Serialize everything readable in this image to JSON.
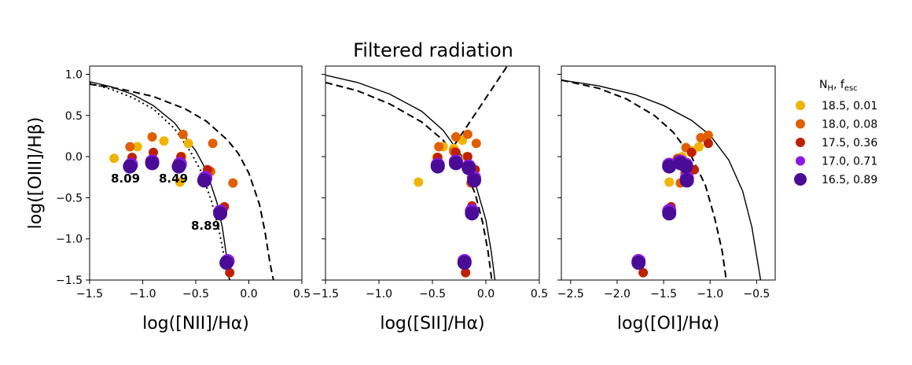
{
  "title": "Filtered radiation",
  "legend": {
    "title_main": "N",
    "title_sub1": "H",
    "title_sep": ", f",
    "title_sub2": "esc",
    "entries": [
      {
        "label": "18.5, 0.01",
        "color": "#f0b400"
      },
      {
        "label": "18.0, 0.08",
        "color": "#e06000"
      },
      {
        "label": "17.5, 0.36",
        "color": "#c02000"
      },
      {
        "label": "17.0, 0.71",
        "color": "#8c1ae6"
      },
      {
        "label": "16.5, 0.89",
        "color": "#4a0c96"
      }
    ]
  },
  "chart_data": [
    {
      "type": "scatter",
      "xlabel": "log([NII]/Hα)",
      "ylabel": "log([OIII]/Hβ)",
      "xlim": [
        -1.5,
        0.5
      ],
      "ylim": [
        -1.5,
        1.1
      ],
      "xticks": [
        -1.5,
        -1.0,
        -0.5,
        0.0,
        0.5
      ],
      "xticklabels": [
        "−1.5",
        "−1.0",
        "−0.5",
        "0.0",
        "0.5"
      ],
      "yticks": [
        -1.5,
        -1.0,
        -0.5,
        0.0,
        0.5,
        1.0
      ],
      "yticklabels": [
        "−1.5",
        "−1.0",
        "−0.5",
        "0.0",
        "0.5",
        "1.0"
      ],
      "annotations": [
        {
          "text": "8.09",
          "x": -1.25,
          "y": -0.27
        },
        {
          "text": "8.49",
          "x": -0.67,
          "y": -0.27
        },
        {
          "text": "8.89",
          "x": -0.55,
          "y": -0.85
        }
      ],
      "series": [
        {
          "name": "18.5, 0.01",
          "color": "#f0b400",
          "size": "small",
          "x": [
            -1.27,
            -1.05,
            -0.8,
            -0.63,
            -0.57,
            -0.65
          ],
          "y": [
            -0.02,
            0.12,
            0.19,
            0.0,
            0.16,
            -0.31
          ]
        },
        {
          "name": "18.0, 0.08",
          "color": "#e06000",
          "size": "small",
          "x": [
            -1.12,
            -0.91,
            -0.62,
            -0.34,
            -0.15,
            -0.36,
            -0.4
          ],
          "y": [
            0.12,
            0.24,
            0.27,
            0.16,
            -0.32,
            -0.18,
            -0.25
          ]
        },
        {
          "name": "17.5, 0.36",
          "color": "#c02000",
          "size": "small",
          "x": [
            -1.1,
            -0.9,
            -0.64,
            -0.39,
            -0.23,
            -0.18
          ],
          "y": [
            -0.01,
            0.05,
            0.0,
            -0.16,
            -0.61,
            -1.41
          ]
        },
        {
          "name": "17.0, 0.71",
          "color": "#8c1ae6",
          "size": "large",
          "x": [
            -1.11,
            -0.91,
            -0.65,
            -0.41,
            -0.27,
            -0.2
          ],
          "y": [
            -0.1,
            -0.06,
            -0.09,
            -0.26,
            -0.67,
            -1.27
          ]
        },
        {
          "name": "16.5, 0.89",
          "color": "#4a0c96",
          "size": "large",
          "x": [
            -1.12,
            -0.91,
            -0.66,
            -0.42,
            -0.27,
            -0.21
          ],
          "y": [
            -0.12,
            -0.08,
            -0.12,
            -0.29,
            -0.69,
            -1.29
          ]
        }
      ],
      "curves": [
        {
          "name": "kauffmann-2003",
          "style": "solid",
          "x": [
            -1.5,
            -1.3,
            -1.1,
            -0.9,
            -0.7,
            -0.5,
            -0.4,
            -0.3,
            -0.25,
            -0.2,
            -0.18
          ],
          "y": [
            0.91,
            0.85,
            0.76,
            0.62,
            0.41,
            0.07,
            -0.17,
            -0.56,
            -0.86,
            -1.3,
            -1.55
          ]
        },
        {
          "name": "kewley-2001",
          "style": "dashed",
          "x": [
            -1.5,
            -1.2,
            -0.9,
            -0.6,
            -0.4,
            -0.2,
            -0.1,
            0.0,
            0.1,
            0.15,
            0.2,
            0.24
          ],
          "y": [
            0.88,
            0.82,
            0.73,
            0.58,
            0.43,
            0.2,
            0.04,
            -0.2,
            -0.58,
            -0.9,
            -1.3,
            -1.55
          ]
        },
        {
          "name": "stasinska-2006",
          "style": "dotted",
          "x": [
            -1.5,
            -1.3,
            -1.1,
            -0.9,
            -0.7,
            -0.55,
            -0.45,
            -0.35,
            -0.28,
            -0.22,
            -0.17
          ],
          "y": [
            0.89,
            0.82,
            0.72,
            0.58,
            0.34,
            0.06,
            -0.18,
            -0.55,
            -0.9,
            -1.3,
            -1.55
          ]
        }
      ]
    },
    {
      "type": "scatter",
      "xlabel": "log([SII]/Hα)",
      "ylabel": "",
      "xlim": [
        -1.5,
        0.5
      ],
      "ylim": [
        -1.5,
        1.1
      ],
      "xticks": [
        -1.5,
        -1.0,
        -0.5,
        0.0,
        0.5
      ],
      "xticklabels": [
        "−1.5",
        "−1.0",
        "−0.5",
        "0.0",
        "0.5"
      ],
      "yticks": [
        -1.5,
        -1.0,
        -0.5,
        0.0,
        0.5,
        1.0
      ],
      "yticklabels": [],
      "annotations": [],
      "series": [
        {
          "name": "18.5, 0.01",
          "color": "#f0b400",
          "size": "small",
          "x": [
            -0.63,
            -0.46,
            -0.4,
            -0.3,
            -0.22,
            -0.18
          ],
          "y": [
            -0.31,
            -0.01,
            0.12,
            0.1,
            0.2,
            0.0
          ]
        },
        {
          "name": "18.0, 0.08",
          "color": "#e06000",
          "size": "small",
          "x": [
            -0.44,
            -0.28,
            -0.17,
            -0.09,
            -0.3,
            -0.14
          ],
          "y": [
            0.12,
            0.24,
            0.27,
            0.16,
            0.06,
            -0.32
          ]
        },
        {
          "name": "17.5, 0.36",
          "color": "#c02000",
          "size": "small",
          "x": [
            -0.45,
            -0.28,
            -0.17,
            -0.1,
            -0.13,
            -0.19
          ],
          "y": [
            -0.01,
            0.05,
            0.0,
            -0.16,
            -0.6,
            -1.41
          ]
        },
        {
          "name": "17.0, 0.71",
          "color": "#8c1ae6",
          "size": "large",
          "x": [
            -0.45,
            -0.28,
            -0.16,
            -0.11,
            -0.13,
            -0.2
          ],
          "y": [
            -0.1,
            -0.06,
            -0.12,
            -0.26,
            -0.66,
            -1.27
          ]
        },
        {
          "name": "16.5, 0.89",
          "color": "#4a0c96",
          "size": "large",
          "x": [
            -0.45,
            -0.28,
            -0.16,
            -0.11,
            -0.13,
            -0.2
          ],
          "y": [
            -0.12,
            -0.08,
            -0.14,
            -0.29,
            -0.69,
            -1.29
          ]
        }
      ],
      "curves": [
        {
          "name": "kewley-2001-sii",
          "style": "solid",
          "x": [
            -1.5,
            -1.2,
            -0.9,
            -0.6,
            -0.4,
            -0.2,
            -0.1,
            0.0,
            0.05,
            0.09
          ],
          "y": [
            0.99,
            0.9,
            0.76,
            0.55,
            0.32,
            -0.04,
            -0.32,
            -0.77,
            -1.15,
            -1.55
          ]
        },
        {
          "name": "sii-demarcation",
          "style": "dashed",
          "x": [
            -1.5,
            -1.2,
            -0.9,
            -0.6,
            -0.4,
            -0.2,
            -0.1,
            -0.03,
            0.02,
            0.06
          ],
          "y": [
            0.9,
            0.8,
            0.64,
            0.42,
            0.2,
            -0.15,
            -0.45,
            -0.8,
            -1.15,
            -1.55
          ]
        },
        {
          "name": "seyfert-liner",
          "style": "dashed",
          "x": [
            -0.3,
            0.2
          ],
          "y": [
            0.13,
            1.1
          ]
        }
      ]
    },
    {
      "type": "scatter",
      "xlabel": "log([OI]/Hα)",
      "ylabel": "",
      "xlim": [
        -2.6,
        -0.3
      ],
      "ylim": [
        -1.5,
        1.1
      ],
      "xticks": [
        -2.5,
        -2.0,
        -1.5,
        -1.0,
        -0.5
      ],
      "xticklabels": [
        "−2.5",
        "−2.0",
        "−1.5",
        "−1.0",
        "−0.5"
      ],
      "yticks": [
        -1.5,
        -1.0,
        -0.5,
        0.0,
        0.5,
        1.0
      ],
      "yticklabels": [],
      "annotations": [],
      "series": [
        {
          "name": "18.5, 0.01",
          "color": "#f0b400",
          "size": "small",
          "x": [
            -1.44,
            -1.3,
            -1.19,
            -1.12
          ],
          "y": [
            -0.31,
            0.0,
            0.07,
            0.12
          ]
        },
        {
          "name": "18.0, 0.08",
          "color": "#e06000",
          "size": "small",
          "x": [
            -1.32,
            -1.26,
            -1.1,
            -1.02,
            -1.27,
            -1.35
          ],
          "y": [
            -0.32,
            0.11,
            0.23,
            0.26,
            -0.2,
            -0.02
          ]
        },
        {
          "name": "17.5, 0.36",
          "color": "#c02000",
          "size": "small",
          "x": [
            -1.72,
            -1.42,
            -1.35,
            -1.2,
            -1.17,
            -1.02
          ],
          "y": [
            -1.41,
            -0.61,
            -0.04,
            0.05,
            -0.16,
            0.16
          ]
        },
        {
          "name": "17.0, 0.71",
          "color": "#8c1ae6",
          "size": "large",
          "x": [
            -1.77,
            -1.44,
            -1.44,
            -1.32,
            -1.26,
            -1.25
          ],
          "y": [
            -1.27,
            -0.66,
            -0.1,
            -0.06,
            -0.1,
            -0.26
          ]
        },
        {
          "name": "16.5, 0.89",
          "color": "#4a0c96",
          "size": "large",
          "x": [
            -1.77,
            -1.44,
            -1.44,
            -1.32,
            -1.26,
            -1.25
          ],
          "y": [
            -1.29,
            -0.69,
            -0.12,
            -0.08,
            -0.12,
            -0.29
          ]
        }
      ],
      "curves": [
        {
          "name": "kewley-2001-oi",
          "style": "solid",
          "x": [
            -2.6,
            -2.2,
            -1.8,
            -1.5,
            -1.2,
            -1.0,
            -0.8,
            -0.65,
            -0.55,
            -0.45
          ],
          "y": [
            0.93,
            0.86,
            0.75,
            0.62,
            0.44,
            0.26,
            -0.04,
            -0.42,
            -0.86,
            -1.55
          ]
        },
        {
          "name": "oi-demarcation",
          "style": "dashed",
          "x": [
            -2.6,
            -2.2,
            -1.9,
            -1.6,
            -1.4,
            -1.2,
            -1.05,
            -0.95,
            -0.87,
            -0.82
          ],
          "y": [
            0.93,
            0.83,
            0.7,
            0.5,
            0.3,
            0.0,
            -0.35,
            -0.75,
            -1.15,
            -1.55
          ]
        }
      ]
    }
  ]
}
